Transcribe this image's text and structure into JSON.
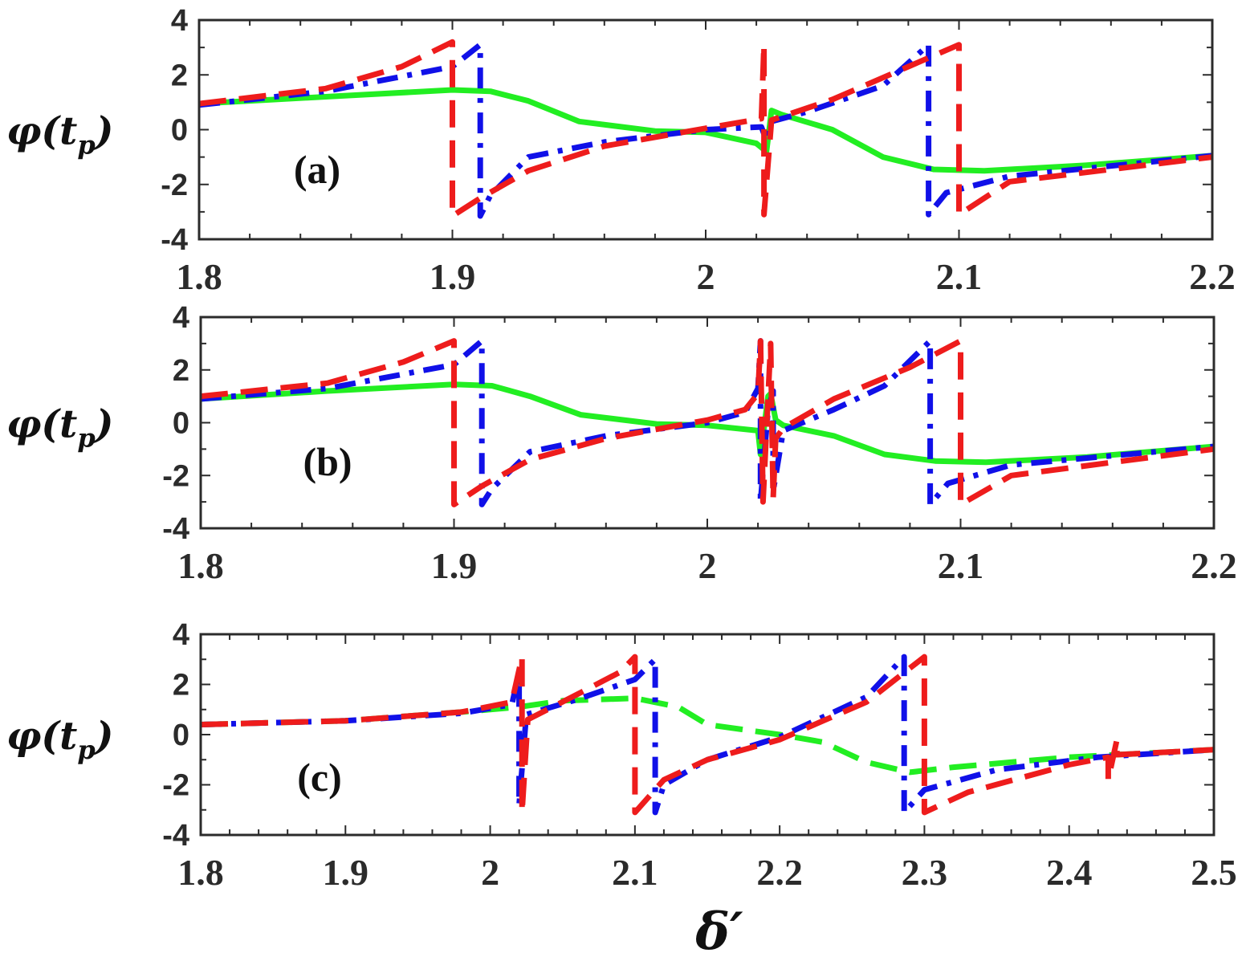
{
  "colors": {
    "green": "#22ee22",
    "blue": "#1010e8",
    "red": "#ee1c1c",
    "axis": "#2b2b2b"
  },
  "figure": {
    "xlabel": "δ′"
  },
  "chart_data": [
    {
      "type": "line",
      "panel": "(a)",
      "ylabel": "φ(tp)",
      "ylabel_main": "φ(t",
      "ylabel_sub": "p",
      "ylabel_close": ")",
      "xlim": [
        1.8,
        2.2
      ],
      "ylim": [
        -4,
        4
      ],
      "xticks": [
        "1.8",
        "1.9",
        "2",
        "2.1",
        "2.2"
      ],
      "yticks": [
        "4",
        "2",
        "0",
        "-2",
        "-4"
      ],
      "series": [
        {
          "name": "green",
          "style": "solid",
          "color": "green",
          "x": [
            1.8,
            1.85,
            1.9,
            1.915,
            1.93,
            1.95,
            1.98,
            2.0,
            2.02,
            2.024,
            2.026,
            2.03,
            2.05,
            2.07,
            2.09,
            2.11,
            2.15,
            2.2
          ],
          "y": [
            0.95,
            1.2,
            1.45,
            1.4,
            1.05,
            0.3,
            -0.05,
            -0.1,
            -0.5,
            -0.8,
            0.7,
            0.55,
            0.0,
            -1.0,
            -1.45,
            -1.5,
            -1.3,
            -0.95
          ]
        },
        {
          "name": "blue",
          "style": "dashdot",
          "color": "blue",
          "x": [
            1.8,
            1.85,
            1.9,
            1.911,
            1.911,
            1.915,
            1.93,
            1.96,
            2.0,
            2.022,
            2.024,
            2.026,
            2.04,
            2.07,
            2.088,
            2.088,
            2.095,
            2.12,
            2.2
          ],
          "y": [
            0.9,
            1.4,
            2.3,
            3.1,
            -3.15,
            -2.4,
            -1.0,
            -0.45,
            0.0,
            0.1,
            -0.4,
            0.3,
            0.65,
            1.6,
            3.1,
            -3.1,
            -2.3,
            -1.7,
            -0.95
          ]
        },
        {
          "name": "red",
          "style": "dashed",
          "color": "red",
          "x": [
            1.8,
            1.85,
            1.88,
            1.9,
            1.9,
            1.911,
            1.93,
            1.96,
            2.0,
            2.022,
            2.023,
            2.023,
            2.026,
            2.05,
            2.08,
            2.1,
            2.1,
            2.12,
            2.2
          ],
          "y": [
            0.95,
            1.5,
            2.3,
            3.2,
            -3.15,
            -2.5,
            -1.5,
            -0.6,
            0.05,
            0.4,
            3.1,
            -3.1,
            0.35,
            1.1,
            2.3,
            3.1,
            -3.1,
            -1.9,
            -1.0
          ]
        }
      ]
    },
    {
      "type": "line",
      "panel": "(b)",
      "ylabel": "φ(tp)",
      "ylabel_main": "φ(t",
      "ylabel_sub": "p",
      "ylabel_close": ")",
      "xlim": [
        1.8,
        2.2
      ],
      "ylim": [
        -4,
        4
      ],
      "xticks": [
        "1.8",
        "1.9",
        "2",
        "2.1",
        "2.2"
      ],
      "yticks": [
        "4",
        "2",
        "0",
        "-2",
        "-4"
      ],
      "series": [
        {
          "name": "green",
          "style": "solid",
          "color": "green",
          "x": [
            1.8,
            1.85,
            1.9,
            1.915,
            1.93,
            1.95,
            1.98,
            2.0,
            2.02,
            2.021,
            2.024,
            2.025,
            2.027,
            2.03,
            2.05,
            2.07,
            2.09,
            2.11,
            2.15,
            2.2
          ],
          "y": [
            0.9,
            1.2,
            1.45,
            1.4,
            1.0,
            0.3,
            -0.05,
            -0.1,
            -0.3,
            -1.2,
            1.0,
            1.1,
            0.1,
            -0.1,
            -0.5,
            -1.2,
            -1.45,
            -1.5,
            -1.3,
            -0.9
          ]
        },
        {
          "name": "blue",
          "style": "dashdot",
          "color": "blue",
          "x": [
            1.8,
            1.85,
            1.9,
            1.911,
            1.911,
            1.915,
            1.93,
            1.96,
            2.0,
            2.015,
            2.02,
            2.021,
            2.021,
            2.024,
            2.026,
            2.026,
            2.03,
            2.05,
            2.07,
            2.088,
            2.088,
            2.095,
            2.12,
            2.2
          ],
          "y": [
            0.9,
            1.3,
            2.2,
            3.1,
            -3.1,
            -2.5,
            -1.1,
            -0.5,
            0.0,
            0.4,
            1.3,
            3.1,
            -3.0,
            0.5,
            1.2,
            -2.6,
            -0.3,
            0.5,
            1.4,
            3.1,
            -3.1,
            -2.3,
            -1.6,
            -0.9
          ]
        },
        {
          "name": "red",
          "style": "dashed",
          "color": "red",
          "x": [
            1.8,
            1.85,
            1.88,
            1.9,
            1.9,
            1.911,
            1.93,
            1.96,
            2.0,
            2.015,
            2.02,
            2.021,
            2.022,
            2.025,
            2.026,
            2.027,
            2.03,
            2.05,
            2.08,
            2.1,
            2.1,
            2.12,
            2.2
          ],
          "y": [
            1.0,
            1.5,
            2.3,
            3.1,
            -3.1,
            -2.4,
            -1.4,
            -0.6,
            0.1,
            0.5,
            1.1,
            3.1,
            -3.0,
            3.0,
            -2.9,
            -0.6,
            -0.2,
            0.9,
            2.1,
            3.1,
            -3.1,
            -2.0,
            -1.0
          ]
        }
      ]
    },
    {
      "type": "line",
      "panel": "(c)",
      "ylabel": "φ(tp)",
      "ylabel_main": "φ(t",
      "ylabel_sub": "p",
      "ylabel_close": ")",
      "xlim": [
        1.8,
        2.5
      ],
      "ylim": [
        -4,
        4
      ],
      "xticks": [
        "1.8",
        "1.9",
        "2",
        "2.1",
        "2.2",
        "2.3",
        "2.4",
        "2.5"
      ],
      "yticks": [
        "4",
        "2",
        "0",
        "-2",
        "-4"
      ],
      "series": [
        {
          "name": "green",
          "style": "dashed",
          "color": "green",
          "x": [
            1.8,
            1.9,
            1.98,
            2.02,
            2.05,
            2.1,
            2.13,
            2.15,
            2.2,
            2.23,
            2.26,
            2.29,
            2.32,
            2.4,
            2.5
          ],
          "y": [
            0.4,
            0.55,
            0.9,
            1.1,
            1.35,
            1.45,
            1.1,
            0.4,
            0.0,
            -0.3,
            -1.1,
            -1.5,
            -1.3,
            -0.9,
            -0.6
          ]
        },
        {
          "name": "blue",
          "style": "dashdot",
          "color": "blue",
          "x": [
            1.8,
            1.9,
            1.98,
            2.015,
            2.02,
            2.02,
            2.025,
            2.06,
            2.1,
            2.114,
            2.114,
            2.12,
            2.15,
            2.2,
            2.26,
            2.286,
            2.286,
            2.3,
            2.35,
            2.42,
            2.5
          ],
          "y": [
            0.4,
            0.55,
            0.85,
            1.2,
            2.5,
            -2.8,
            0.8,
            1.4,
            2.2,
            3.0,
            -3.1,
            -2.0,
            -1.0,
            -0.1,
            1.5,
            3.1,
            -3.1,
            -2.2,
            -1.4,
            -0.9,
            -0.6
          ]
        },
        {
          "name": "red",
          "style": "dashed",
          "color": "red",
          "x": [
            1.8,
            1.9,
            1.98,
            2.015,
            2.022,
            2.022,
            2.026,
            2.06,
            2.09,
            2.1,
            2.1,
            2.12,
            2.15,
            2.2,
            2.26,
            2.3,
            2.3,
            2.33,
            2.4,
            2.427,
            2.427,
            2.433,
            2.433,
            2.5
          ],
          "y": [
            0.4,
            0.55,
            0.9,
            1.3,
            3.1,
            -3.1,
            0.6,
            1.6,
            2.5,
            3.1,
            -3.1,
            -1.8,
            -1.0,
            -0.2,
            1.3,
            3.1,
            -3.1,
            -2.3,
            -1.2,
            -0.9,
            -1.8,
            -0.2,
            -0.8,
            -0.6
          ]
        }
      ]
    }
  ]
}
